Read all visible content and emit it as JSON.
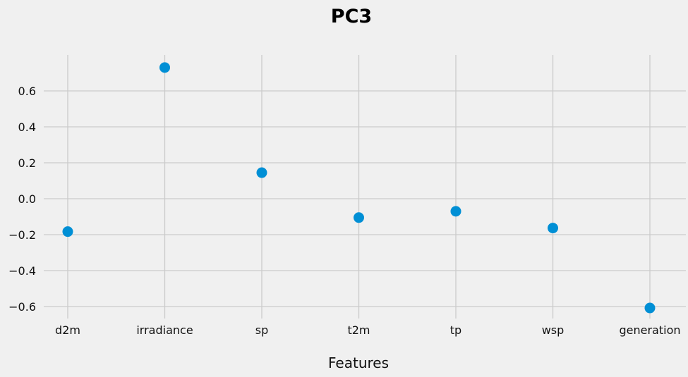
{
  "chart_data": {
    "type": "scatter",
    "title": "PC3",
    "xlabel": "Features",
    "ylabel": "",
    "categories": [
      "d2m",
      "irradiance",
      "sp",
      "t2m",
      "tp",
      "wsp",
      "generation"
    ],
    "values": [
      -0.183,
      0.73,
      0.145,
      -0.105,
      -0.07,
      -0.163,
      -0.608
    ],
    "yticks": [
      -0.6,
      -0.4,
      -0.2,
      0.0,
      0.2,
      0.4,
      0.6
    ],
    "ytick_labels": [
      "−0.6",
      "−0.4",
      "−0.2",
      "0.0",
      "0.2",
      "0.4",
      "0.6"
    ],
    "ylim": [
      -0.68,
      0.79
    ],
    "grid": true,
    "marker_color": "#008fd5",
    "background_color": "#f0f0f0",
    "grid_color": "#cbcbcb"
  }
}
